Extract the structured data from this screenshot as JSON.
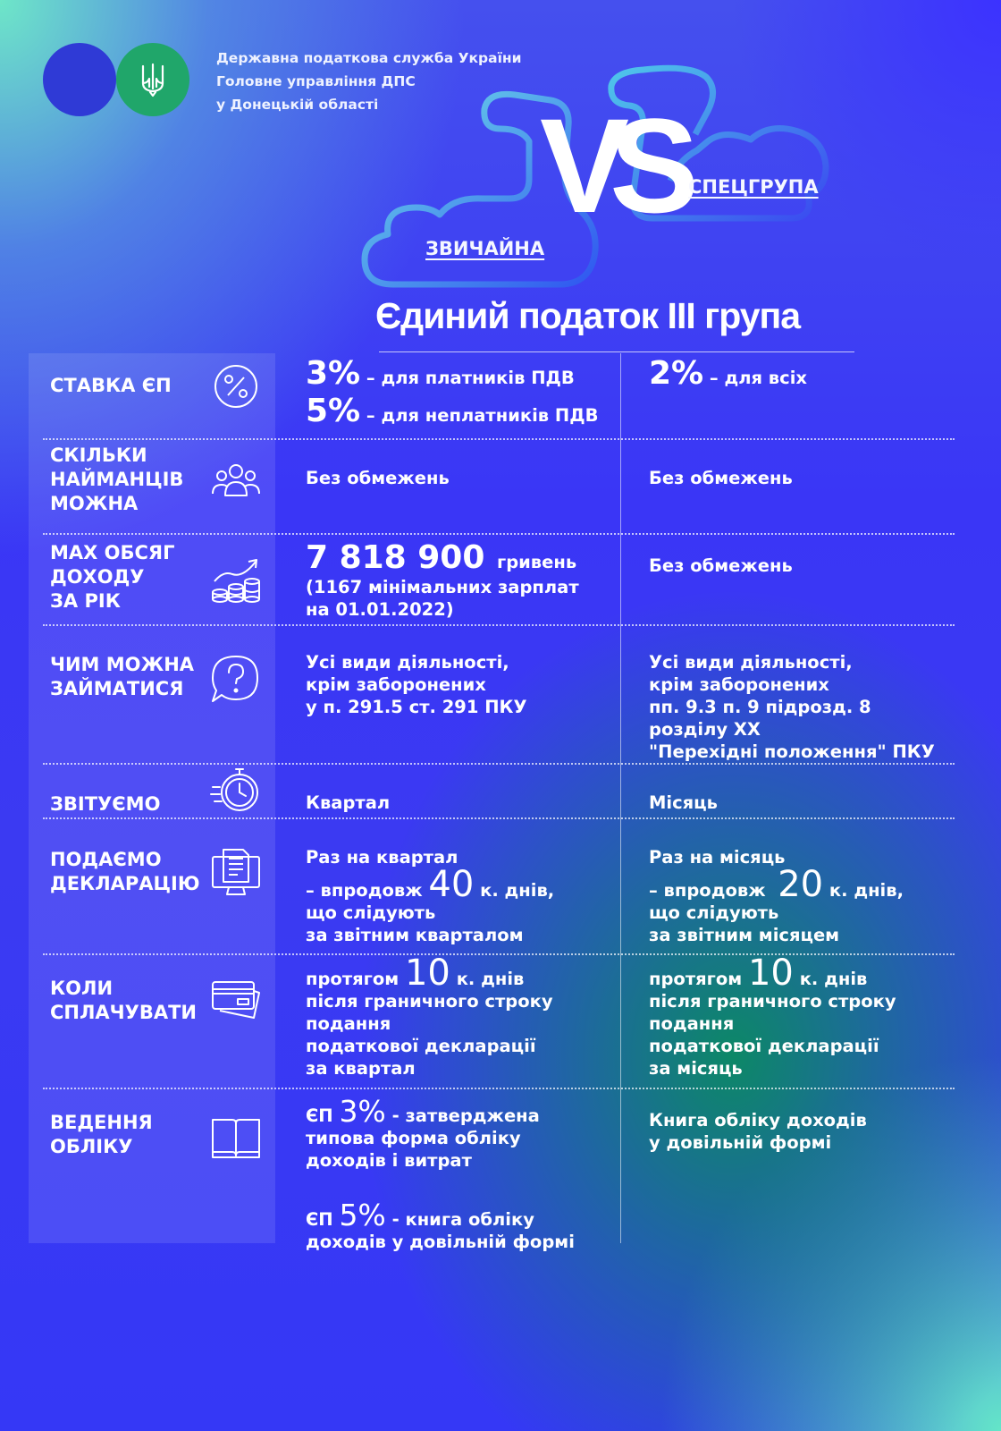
{
  "header": {
    "org_line1": "Державна податкова служба України",
    "org_line2": "Головне управління ДПС",
    "org_line3": "у Донецькій області"
  },
  "hero": {
    "vs": "VS",
    "left_label": "ЗВИЧАЙНА",
    "right_label": "СПЕЦГРУПА"
  },
  "title": "Єдиний податок ІІІ група",
  "rows": [
    {
      "label": [
        "СТАВКА ЄП"
      ],
      "icon": "percent-icon",
      "col1": {
        "a_big": "3%",
        "a_text": "– для платників ПДВ",
        "b_big": "5%",
        "b_text": "– для неплатників ПДВ"
      },
      "col2": {
        "big": "2%",
        "text": "– для всіх"
      }
    },
    {
      "label": [
        "СКІЛЬКИ",
        "НАЙМАНЦІВ",
        "МОЖНА"
      ],
      "icon": "employees-icon",
      "col1": [
        "Без обмежень"
      ],
      "col2": [
        "Без обмежень"
      ]
    },
    {
      "label": [
        "MAX ОБСЯГ",
        "ДОХОДУ",
        "ЗА РІК"
      ],
      "icon": "income-growth-icon",
      "col1": {
        "big": "7 818 900",
        "unit": "гривень",
        "lines": [
          "(1167 мінімальних зарплат",
          "на 01.01.2022)"
        ]
      },
      "col2": [
        "Без обмежень"
      ]
    },
    {
      "label": [
        "ЧИМ МОЖНА",
        "ЗАЙМАТИСЯ"
      ],
      "icon": "question-bubble-icon",
      "col1": [
        "Усі види діяльності,",
        "крім заборонених",
        "у п. 291.5 ст. 291 ПКУ"
      ],
      "col2": [
        "Усі види діяльності,",
        "крім заборонених",
        "пп. 9.3 п. 9 підрозд. 8",
        "розділу ХХ",
        "\"Перехідні положення\" ПКУ"
      ]
    },
    {
      "label": [
        "ЗВІТУЄМО"
      ],
      "icon": "stopwatch-icon",
      "col1": [
        "Квартал"
      ],
      "col2": [
        "Місяць"
      ]
    },
    {
      "label": [
        "ПОДАЄМО",
        "ДЕКЛАРАЦІЮ"
      ],
      "icon": "computer-document-icon",
      "col1": {
        "line1": "Раз на квартал",
        "pre": "– впродовж",
        "num": "40",
        "post": "к. днів,",
        "lines": [
          "що слідують",
          "за звітним кварталом"
        ]
      },
      "col2": {
        "line1": "Раз на місяць",
        "pre": "– впродовж",
        "num": "20",
        "post": "к. днів,",
        "lines": [
          "що слідують",
          "за звітним місяцем"
        ]
      }
    },
    {
      "label": [
        "КОЛИ",
        "СПЛАЧУВАТИ"
      ],
      "icon": "payment-card-icon",
      "col1": {
        "pre": "протягом",
        "num": "10",
        "post": "к. днів",
        "lines": [
          "після граничного строку",
          "подання",
          "податкової декларації",
          "за квартал"
        ]
      },
      "col2": {
        "pre": "протягом",
        "num": "10",
        "post": "к. днів",
        "lines": [
          "після граничного строку",
          "подання",
          "податкової декларації",
          "за місяць"
        ]
      }
    },
    {
      "label": [
        "ВЕДЕННЯ",
        "ОБЛІКУ"
      ],
      "icon": "book-icon",
      "col1": {
        "a_pre": "ЄП",
        "a_num": "3%",
        "a_post": "- затверджена",
        "a_lines": [
          "типова форма обліку",
          "доходів і витрат"
        ],
        "b_pre": "ЄП",
        "b_num": "5%",
        "b_post": "- книга обліку",
        "b_lines": [
          "доходів у довільній формі"
        ]
      },
      "col2": [
        "Книга обліку доходів",
        "у довільній формі"
      ]
    }
  ],
  "colors": {
    "accent_cyan": "#5fd8e6",
    "green_seal": "#20a66a",
    "blue_seal": "#2f3ad6"
  }
}
